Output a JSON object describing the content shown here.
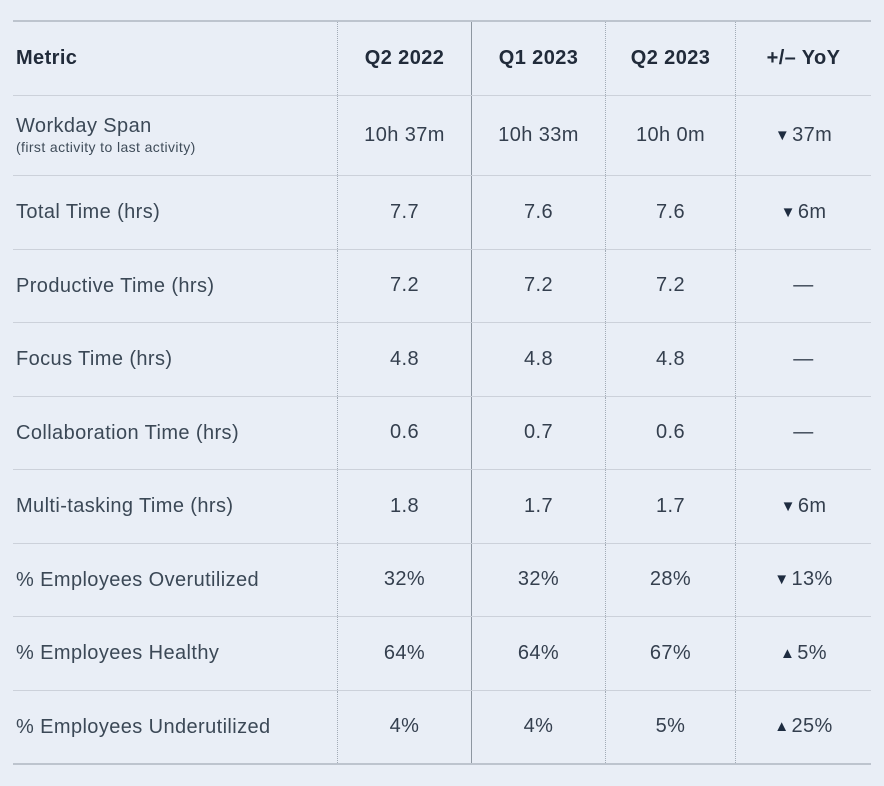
{
  "colors": {
    "background": "#e9eef6",
    "header_text": "#212b3a",
    "body_text": "#343f4e",
    "row_line": "#ccd1da",
    "outer_line": "#bdc4ce",
    "dotted_separator": "#a2abb6",
    "solid_separator": "#8e97a1"
  },
  "table": {
    "columns": [
      {
        "label": "Metric"
      },
      {
        "label": "Q2 2022"
      },
      {
        "label": "Q1 2023"
      },
      {
        "label": "Q2 2023"
      },
      {
        "label": "+/– YoY"
      }
    ],
    "rows": [
      {
        "label": "Workday Span",
        "sublabel": "(first activity to last activity)",
        "values": [
          "10h 37m",
          "10h 33m",
          "10h 0m"
        ],
        "yoy": {
          "symbol": "▼",
          "text": "37m",
          "direction": "down"
        }
      },
      {
        "label": "Total Time (hrs)",
        "values": [
          "7.7",
          "7.6",
          "7.6"
        ],
        "yoy": {
          "symbol": "▼",
          "text": "6m",
          "direction": "down"
        }
      },
      {
        "label": "Productive Time (hrs)",
        "values": [
          "7.2",
          "7.2",
          "7.2"
        ],
        "yoy": {
          "symbol": "",
          "text": "—",
          "direction": "none"
        }
      },
      {
        "label": "Focus Time (hrs)",
        "values": [
          "4.8",
          "4.8",
          "4.8"
        ],
        "yoy": {
          "symbol": "",
          "text": "—",
          "direction": "none"
        }
      },
      {
        "label": "Collaboration Time (hrs)",
        "values": [
          "0.6",
          "0.7",
          "0.6"
        ],
        "yoy": {
          "symbol": "",
          "text": "—",
          "direction": "none"
        }
      },
      {
        "label": "Multi-tasking Time (hrs)",
        "values": [
          "1.8",
          "1.7",
          "1.7"
        ],
        "yoy": {
          "symbol": "▼",
          "text": "6m",
          "direction": "down"
        }
      },
      {
        "label": "% Employees Overutilized",
        "values": [
          "32%",
          "32%",
          "28%"
        ],
        "yoy": {
          "symbol": "▼",
          "text": "13%",
          "direction": "down"
        }
      },
      {
        "label": "% Employees Healthy",
        "values": [
          "64%",
          "64%",
          "67%"
        ],
        "yoy": {
          "symbol": "▲",
          "text": "5%",
          "direction": "up"
        }
      },
      {
        "label": "% Employees Underutilized",
        "values": [
          "4%",
          "4%",
          "5%"
        ],
        "yoy": {
          "symbol": "▲",
          "text": "25%",
          "direction": "up"
        }
      }
    ]
  },
  "chart_data": {
    "type": "table",
    "columns": [
      "Metric",
      "Q2 2022",
      "Q1 2023",
      "Q2 2023",
      "+/– YoY"
    ],
    "rows": [
      [
        "Workday Span (first activity to last activity)",
        "10h 37m",
        "10h 33m",
        "10h 0m",
        "▼37m"
      ],
      [
        "Total Time (hrs)",
        "7.7",
        "7.6",
        "7.6",
        "▼6m"
      ],
      [
        "Productive Time (hrs)",
        "7.2",
        "7.2",
        "7.2",
        "—"
      ],
      [
        "Focus Time (hrs)",
        "4.8",
        "4.8",
        "4.8",
        "—"
      ],
      [
        "Collaboration Time (hrs)",
        "0.6",
        "0.7",
        "0.6",
        "—"
      ],
      [
        "Multi-tasking Time (hrs)",
        "1.8",
        "1.7",
        "1.7",
        "▼6m"
      ],
      [
        "% Employees Overutilized",
        "32%",
        "32%",
        "28%",
        "▼13%"
      ],
      [
        "% Employees Healthy",
        "64%",
        "64%",
        "67%",
        "▲5%"
      ],
      [
        "% Employees Underutilized",
        "4%",
        "4%",
        "5%",
        "▲25%"
      ]
    ]
  }
}
